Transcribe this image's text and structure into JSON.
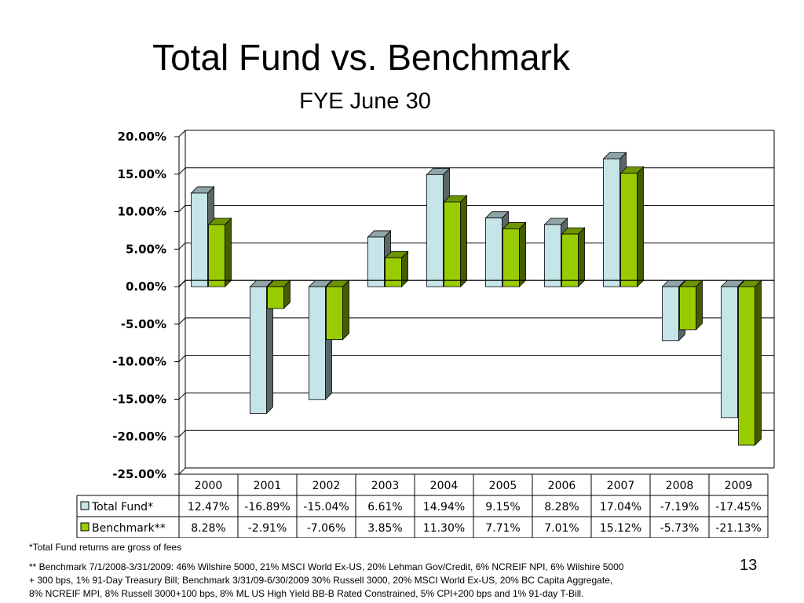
{
  "slide": {
    "title": "Total Fund vs. Benchmark",
    "subtitle": "FYE June 30",
    "page_number": "13"
  },
  "footnotes": {
    "line1": "*Total Fund returns are gross of fees",
    "line2": "** Benchmark 7/1/2008-3/31/2009:  46% Wilshire 5000, 21% MSCI World Ex-US, 20% Lehman Gov/Credit, 6% NCREIF NPI, 6% Wilshire 5000",
    "line3": "+ 300 bps, 1% 91-Day Treasury Bill;   Benchmark 3/31/09-6/30/2009 30% Russell 3000, 20% MSCI World Ex-US, 20% BC Capita Aggregate,",
    "line4": "8% NCREIF MPI, 8% Russell 3000+100 bps, 8% ML US High Yield BB-B Rated Constrained, 5% CPI+200 bps and 1% 91-day T-Bill."
  },
  "chart_data": {
    "type": "bar",
    "title": "Total Fund vs. Benchmark",
    "subtitle": "FYE June 30",
    "categories": [
      "2000",
      "2001",
      "2002",
      "2003",
      "2004",
      "2005",
      "2006",
      "2007",
      "2008",
      "2009"
    ],
    "series": [
      {
        "name": "Total Fund*",
        "values": [
          12.47,
          -16.89,
          -15.04,
          6.61,
          14.94,
          9.15,
          8.28,
          17.04,
          -7.19,
          -17.45
        ],
        "labels": [
          "12.47%",
          "-16.89%",
          "-15.04%",
          "6.61%",
          "14.94%",
          "9.15%",
          "8.28%",
          "17.04%",
          "-7.19%",
          "-17.45%"
        ],
        "color": "#c6e5e8"
      },
      {
        "name": "Benchmark**",
        "values": [
          8.28,
          -2.91,
          -7.06,
          3.85,
          11.3,
          7.71,
          7.01,
          15.12,
          -5.73,
          -21.13
        ],
        "labels": [
          "8.28%",
          "-2.91%",
          "-7.06%",
          "3.85%",
          "11.30%",
          "7.71%",
          "7.01%",
          "15.12%",
          "-5.73%",
          "-21.13%"
        ],
        "color": "#99cc00"
      }
    ],
    "ylim": [
      -25,
      20
    ],
    "yticks": [
      20,
      15,
      10,
      5,
      0,
      -5,
      -10,
      -15,
      -20,
      -25
    ],
    "ytick_labels": [
      "20.00%",
      "15.00%",
      "10.00%",
      "5.00%",
      "0.00%",
      "-5.00%",
      "-10.00%",
      "-15.00%",
      "-20.00%",
      "-25.00%"
    ],
    "grid": true,
    "legend": "data-table-below",
    "style": "3d-clustered-column"
  }
}
